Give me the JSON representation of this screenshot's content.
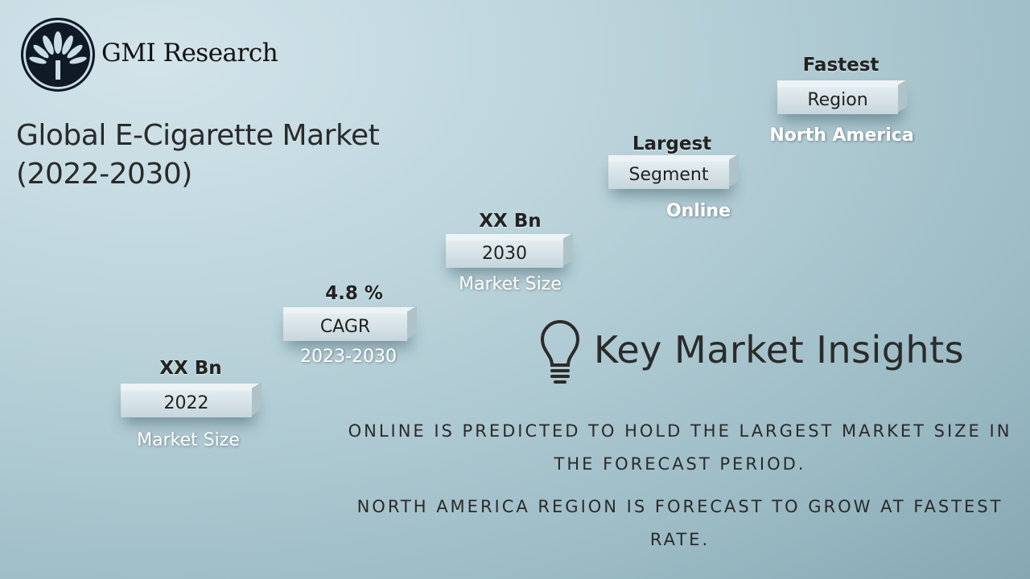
{
  "brand": {
    "name": "GMI Research"
  },
  "title": {
    "line1": "Global E-Cigarette Market",
    "line2": "(2022-2030)"
  },
  "steps": [
    {
      "top": "XX Bn",
      "box": "2022",
      "sub": "Market Size"
    },
    {
      "top": "4.8 %",
      "box": "CAGR",
      "sub": "2023-2030"
    },
    {
      "top": "XX Bn",
      "box": "2030",
      "sub": "Market Size"
    },
    {
      "top": "Largest",
      "box": "Segment",
      "sub": "Online"
    },
    {
      "top": "Fastest",
      "box": "Region",
      "sub": "North America"
    }
  ],
  "insights": {
    "heading": "Key Market Insights",
    "icon": "lightbulb-icon",
    "items": [
      "ONLINE IS PREDICTED TO HOLD THE LARGEST MARKET SIZE IN THE FORECAST PERIOD.",
      "NORTH AMERICA REGION IS FORECAST TO GROW AT FASTEST RATE."
    ]
  }
}
